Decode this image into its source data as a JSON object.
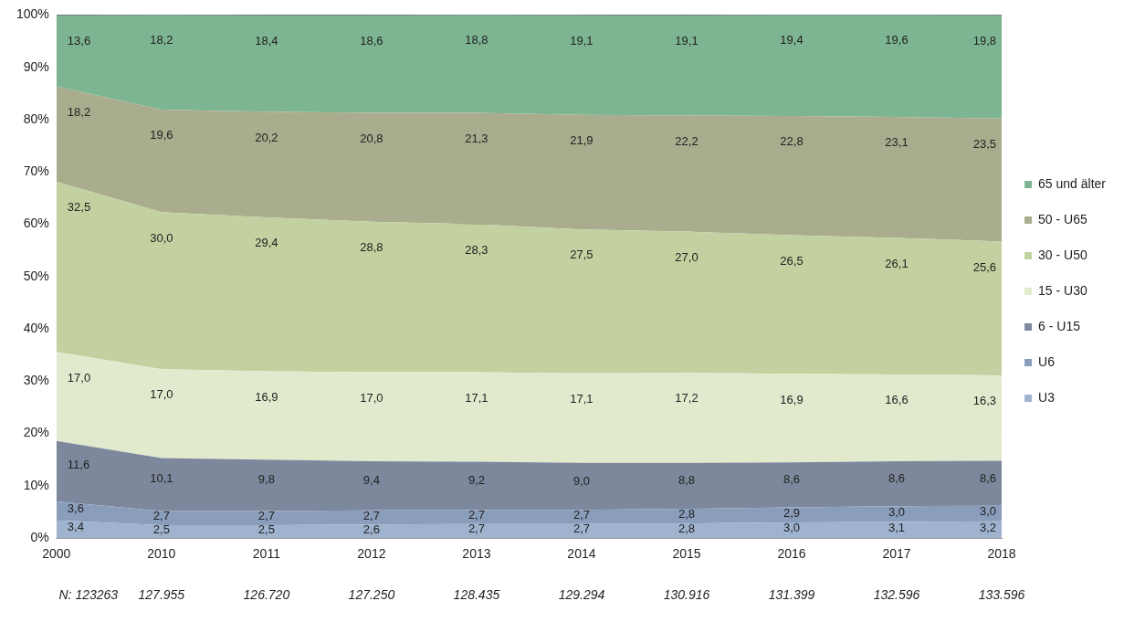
{
  "chart_data": {
    "type": "area",
    "stacked": true,
    "categories": [
      "2000",
      "2010",
      "2011",
      "2012",
      "2013",
      "2014",
      "2015",
      "2016",
      "2017",
      "2018"
    ],
    "series": [
      {
        "name": "U3",
        "color": "#9fb3cf",
        "values": [
          3.4,
          2.5,
          2.5,
          2.6,
          2.7,
          2.7,
          2.8,
          3.0,
          3.1,
          3.2
        ],
        "value_labels": [
          "3,4",
          "2,5",
          "2,5",
          "2,6",
          "2,7",
          "2,7",
          "2,8",
          "3,0",
          "3,1",
          "3,2"
        ]
      },
      {
        "name": "U6",
        "color": "#8a9ebc",
        "values": [
          3.6,
          2.7,
          2.7,
          2.7,
          2.7,
          2.7,
          2.8,
          2.9,
          3.0,
          3.0
        ],
        "value_labels": [
          "3,6",
          "2,7",
          "2,7",
          "2,7",
          "2,7",
          "2,7",
          "2,8",
          "2,9",
          "3,0",
          "3,0"
        ]
      },
      {
        "name": "6 - U15",
        "color": "#7d889c",
        "values": [
          11.6,
          10.1,
          9.8,
          9.4,
          9.2,
          9.0,
          8.8,
          8.6,
          8.6,
          8.6
        ],
        "value_labels": [
          "11,6",
          "10,1",
          "9,8",
          "9,4",
          "9,2",
          "9,0",
          "8,8",
          "8,6",
          "8,6",
          "8,6"
        ]
      },
      {
        "name": "15 - U30",
        "color": "#e2eacd",
        "values": [
          17.0,
          17.0,
          16.9,
          17.0,
          17.1,
          17.1,
          17.2,
          16.9,
          16.6,
          16.3
        ],
        "value_labels": [
          "17,0",
          "17,0",
          "16,9",
          "17,0",
          "17,1",
          "17,1",
          "17,2",
          "16,9",
          "16,6",
          "16,3"
        ]
      },
      {
        "name": "30 - U50",
        "color": "#c2d19f",
        "values": [
          32.5,
          30.0,
          29.4,
          28.8,
          28.3,
          27.5,
          27.0,
          26.5,
          26.1,
          25.6
        ],
        "value_labels": [
          "32,5",
          "30,0",
          "29,4",
          "28,8",
          "28,3",
          "27,5",
          "27,0",
          "26,5",
          "26,1",
          "25,6"
        ]
      },
      {
        "name": "50 - U65",
        "color": "#a9ad8d",
        "values": [
          18.2,
          19.6,
          20.2,
          20.8,
          21.3,
          21.9,
          22.2,
          22.8,
          23.1,
          23.5
        ],
        "value_labels": [
          "18,2",
          "19,6",
          "20,2",
          "20,8",
          "21,3",
          "21,9",
          "22,2",
          "22,8",
          "23,1",
          "23,5"
        ]
      },
      {
        "name": "65 und älter",
        "color": "#7db593",
        "values": [
          13.6,
          18.2,
          18.4,
          18.6,
          18.8,
          19.1,
          19.1,
          19.4,
          19.6,
          19.8
        ],
        "value_labels": [
          "13,6",
          "18,2",
          "18,4",
          "18,6",
          "18,8",
          "19,1",
          "19,1",
          "19,4",
          "19,6",
          "19,8"
        ]
      }
    ],
    "ylim": [
      0,
      100
    ],
    "yticks": [
      {
        "value": 0,
        "label": "0%"
      },
      {
        "value": 10,
        "label": "10%"
      },
      {
        "value": 20,
        "label": "20%"
      },
      {
        "value": 30,
        "label": "30%"
      },
      {
        "value": 40,
        "label": "40%"
      },
      {
        "value": 50,
        "label": "50%"
      },
      {
        "value": 60,
        "label": "60%"
      },
      {
        "value": 70,
        "label": "70%"
      },
      {
        "value": 80,
        "label": "80%"
      },
      {
        "value": 90,
        "label": "90%"
      },
      {
        "value": 100,
        "label": "100%"
      }
    ],
    "grid": "y",
    "legend": "right",
    "annotations": [
      "N: 123263",
      "127.955",
      "126.720",
      "127.250",
      "128.435",
      "129.294",
      "130.916",
      "131.399",
      "132.596",
      "133.596"
    ]
  }
}
